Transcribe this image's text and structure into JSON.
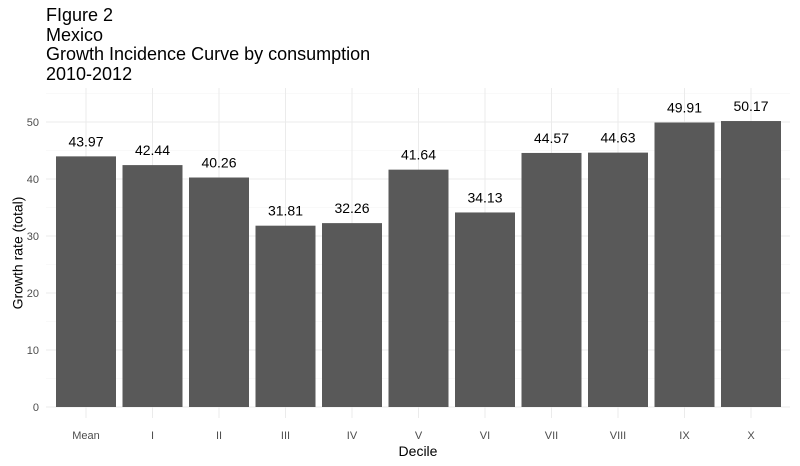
{
  "chart_data": {
    "type": "bar",
    "title_lines": [
      "FIgure 2",
      "Mexico",
      "Growth Incidence Curve by consumption",
      "2010-2012"
    ],
    "xlabel": "Decile",
    "ylabel": "Growth rate (total)",
    "categories": [
      "Mean",
      "I",
      "II",
      "III",
      "IV",
      "V",
      "VI",
      "VII",
      "VIII",
      "IX",
      "X"
    ],
    "values": [
      43.97,
      42.44,
      40.26,
      31.81,
      32.26,
      41.64,
      34.13,
      44.57,
      44.63,
      49.91,
      50.17
    ],
    "data_labels": [
      "43.97",
      "42.44",
      "40.26",
      "31.81",
      "32.26",
      "41.64",
      "34.13",
      "44.57",
      "44.63",
      "49.91",
      "50.17"
    ],
    "yticks": [
      0,
      10,
      20,
      30,
      40,
      50
    ],
    "ytick_labels": [
      "0",
      "10",
      "20",
      "30",
      "40",
      "50"
    ],
    "ylim": [
      0,
      55
    ],
    "grid": true,
    "legend": "none",
    "bar_color": "#595959",
    "grid_color": "#ebebeb"
  }
}
